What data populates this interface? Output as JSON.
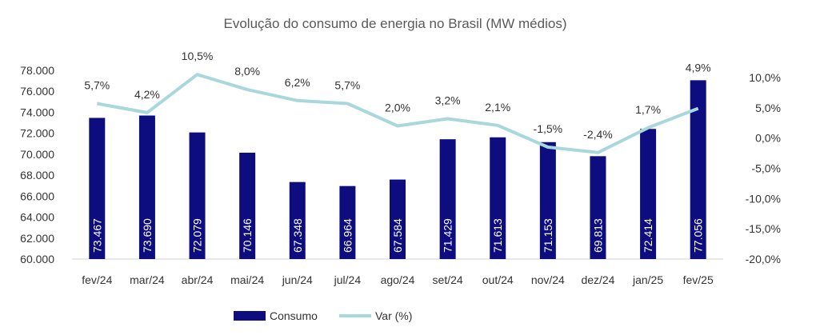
{
  "chart_data": {
    "type": "bar+line",
    "title": "Evolução do consumo de energia no Brasil (MW médios)",
    "categories": [
      "fev/24",
      "mar/24",
      "abr/24",
      "mai/24",
      "jun/24",
      "jul/24",
      "ago/24",
      "set/24",
      "out/24",
      "nov/24",
      "dez/24",
      "jan/25",
      "fev/25"
    ],
    "series": [
      {
        "name": "Consumo",
        "type": "bar",
        "axis": "left",
        "color": "#0d0d80",
        "values": [
          73467,
          73690,
          72079,
          70146,
          67348,
          66964,
          67584,
          71429,
          71613,
          71153,
          69813,
          72414,
          77056
        ],
        "labels": [
          "73.467",
          "73.690",
          "72.079",
          "70.146",
          "67.348",
          "66.964",
          "67.584",
          "71.429",
          "71.613",
          "71.153",
          "69.813",
          "72.414",
          "77.056"
        ]
      },
      {
        "name": "Var (%)",
        "type": "line",
        "axis": "right",
        "color": "#a9d8dc",
        "values": [
          5.7,
          4.2,
          10.5,
          8.0,
          6.2,
          5.7,
          2.0,
          3.2,
          2.1,
          -1.5,
          -2.4,
          1.7,
          4.9
        ],
        "labels": [
          "5,7%",
          "4,2%",
          "10,5%",
          "8,0%",
          "6,2%",
          "5,7%",
          "2,0%",
          "3,2%",
          "2,1%",
          "-1,5%",
          "-2,4%",
          "1,7%",
          "4,9%"
        ]
      }
    ],
    "y_left": {
      "min": 60000,
      "max": 78000,
      "step": 2000,
      "tick_labels": [
        "60.000",
        "62.000",
        "64.000",
        "66.000",
        "68.000",
        "70.000",
        "72.000",
        "74.000",
        "76.000",
        "78.000"
      ]
    },
    "y_right": {
      "min": -20,
      "max": 10,
      "step": 5,
      "tick_labels": [
        "-20,0%",
        "-15,0%",
        "-10,0%",
        "-5,0%",
        "0,0%",
        "5,0%",
        "10,0%"
      ]
    },
    "grid": false,
    "legend_position": "bottom"
  }
}
